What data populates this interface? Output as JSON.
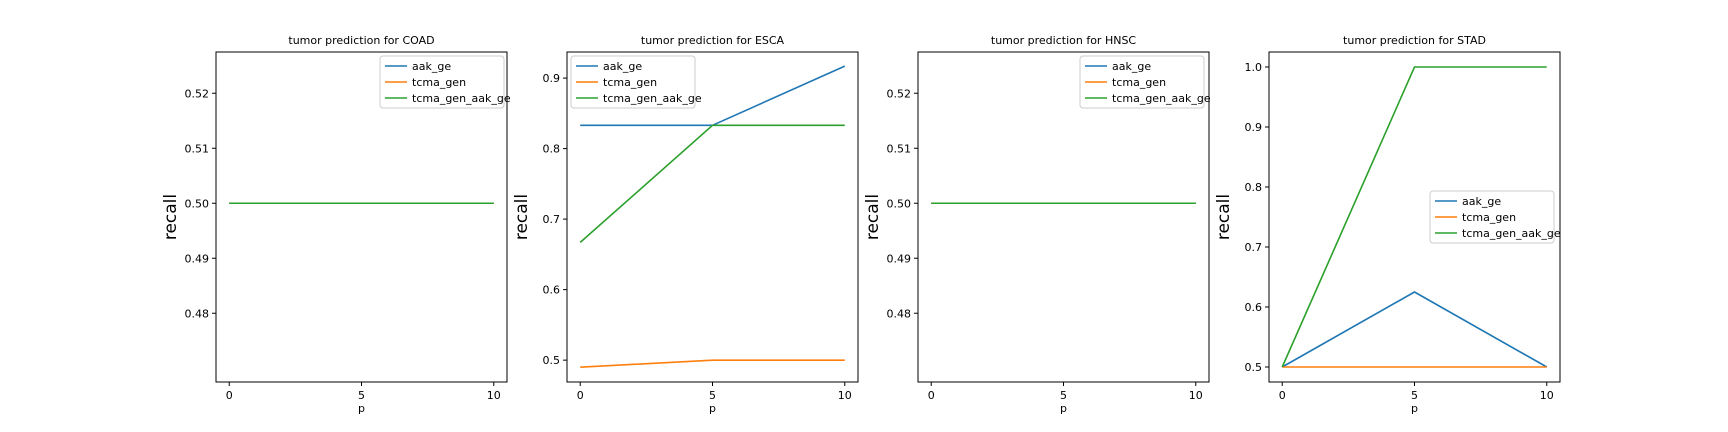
{
  "chart_data": [
    {
      "type": "line",
      "title": "tumor prediction for COAD",
      "xlabel": "p",
      "ylabel": "recall",
      "x": [
        0,
        5,
        10
      ],
      "xlim": [
        -0.5,
        10.5
      ],
      "ylim": [
        0.4675,
        0.5275
      ],
      "xticks": [
        0,
        5,
        10
      ],
      "yticks": [
        0.48,
        0.49,
        0.5,
        0.51,
        0.52
      ],
      "legend_position": "upper right",
      "series": [
        {
          "name": "aak_ge",
          "values": [
            0.5,
            0.5,
            0.5
          ],
          "color": "#1f77b4"
        },
        {
          "name": "tcma_gen",
          "values": [
            0.5,
            0.5,
            0.5
          ],
          "color": "#ff7f0e"
        },
        {
          "name": "tcma_gen_aak_ge",
          "values": [
            0.5,
            0.5,
            0.5
          ],
          "color": "#2ca02c"
        }
      ]
    },
    {
      "type": "line",
      "title": "tumor prediction for ESCA",
      "xlabel": "p",
      "ylabel": "recall",
      "x": [
        0,
        5,
        10
      ],
      "xlim": [
        -0.5,
        10.5
      ],
      "ylim": [
        0.469,
        0.937
      ],
      "xticks": [
        0,
        5,
        10
      ],
      "yticks": [
        0.5,
        0.6,
        0.7,
        0.8,
        0.9
      ],
      "legend_position": "upper left",
      "series": [
        {
          "name": "aak_ge",
          "values": [
            0.833,
            0.833,
            0.917
          ],
          "color": "#1f77b4"
        },
        {
          "name": "tcma_gen",
          "values": [
            0.49,
            0.5,
            0.5
          ],
          "color": "#ff7f0e"
        },
        {
          "name": "tcma_gen_aak_ge",
          "values": [
            0.667,
            0.833,
            0.833
          ],
          "color": "#2ca02c"
        }
      ]
    },
    {
      "type": "line",
      "title": "tumor prediction for HNSC",
      "xlabel": "p",
      "ylabel": "recall",
      "x": [
        0,
        5,
        10
      ],
      "xlim": [
        -0.5,
        10.5
      ],
      "ylim": [
        0.4675,
        0.5275
      ],
      "xticks": [
        0,
        5,
        10
      ],
      "yticks": [
        0.48,
        0.49,
        0.5,
        0.51,
        0.52
      ],
      "legend_position": "upper right",
      "series": [
        {
          "name": "aak_ge",
          "values": [
            0.5,
            0.5,
            0.5
          ],
          "color": "#1f77b4"
        },
        {
          "name": "tcma_gen",
          "values": [
            0.5,
            0.5,
            0.5
          ],
          "color": "#ff7f0e"
        },
        {
          "name": "tcma_gen_aak_ge",
          "values": [
            0.5,
            0.5,
            0.5
          ],
          "color": "#2ca02c"
        }
      ]
    },
    {
      "type": "line",
      "title": "tumor prediction for STAD",
      "xlabel": "p",
      "ylabel": "recall",
      "x": [
        0,
        5,
        10
      ],
      "xlim": [
        -0.5,
        10.5
      ],
      "ylim": [
        0.475,
        1.025
      ],
      "xticks": [
        0,
        5,
        10
      ],
      "yticks": [
        0.5,
        0.6,
        0.7,
        0.8,
        0.9,
        1.0
      ],
      "legend_position": "center right",
      "series": [
        {
          "name": "aak_ge",
          "values": [
            0.5,
            0.625,
            0.5
          ],
          "color": "#1f77b4"
        },
        {
          "name": "tcma_gen",
          "values": [
            0.5,
            0.5,
            0.5
          ],
          "color": "#ff7f0e"
        },
        {
          "name": "tcma_gen_aak_ge",
          "values": [
            0.5,
            1.0,
            1.0
          ],
          "color": "#2ca02c"
        }
      ]
    }
  ]
}
